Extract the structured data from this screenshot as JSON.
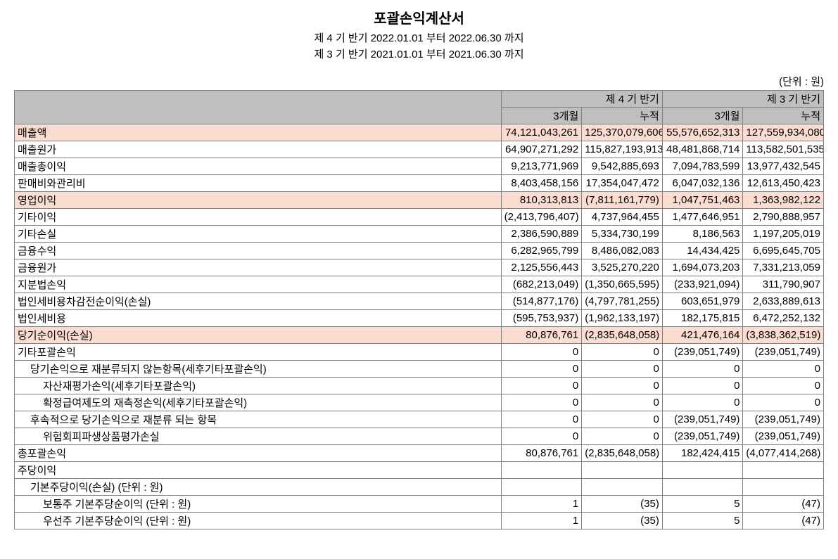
{
  "title": "포괄손익계산서",
  "subtitle1": "제 4 기 반기 2022.01.01 부터 2022.06.30 까지",
  "subtitle2": "제 3 기 반기 2021.01.01 부터 2021.06.30 까지",
  "unit": "(단위 : 원)",
  "headers": {
    "period4": "제 4 기 반기",
    "period3": "제 3 기 반기",
    "sub_3month": "3개월",
    "sub_cum": "누적"
  },
  "rows": [
    {
      "label": "매출액",
      "highlight": true,
      "indent": 0,
      "v1": "74,121,043,261",
      "v2": "125,370,079,606",
      "v3": "55,576,652,313",
      "v4": "127,559,934,080"
    },
    {
      "label": "매출원가",
      "highlight": false,
      "indent": 0,
      "v1": "64,907,271,292",
      "v2": "115,827,193,913",
      "v3": "48,481,868,714",
      "v4": "113,582,501,535"
    },
    {
      "label": "매출총이익",
      "highlight": false,
      "indent": 0,
      "v1": "9,213,771,969",
      "v2": "9,542,885,693",
      "v3": "7,094,783,599",
      "v4": "13,977,432,545"
    },
    {
      "label": "판매비와관리비",
      "highlight": false,
      "indent": 0,
      "v1": "8,403,458,156",
      "v2": "17,354,047,472",
      "v3": "6,047,032,136",
      "v4": "12,613,450,423"
    },
    {
      "label": "영업이익",
      "highlight": true,
      "indent": 0,
      "v1": "810,313,813",
      "v2": "(7,811,161,779)",
      "v3": "1,047,751,463",
      "v4": "1,363,982,122"
    },
    {
      "label": "기타이익",
      "highlight": false,
      "indent": 0,
      "v1": "(2,413,796,407)",
      "v2": "4,737,964,455",
      "v3": "1,477,646,951",
      "v4": "2,790,888,957"
    },
    {
      "label": "기타손실",
      "highlight": false,
      "indent": 0,
      "v1": "2,386,590,889",
      "v2": "5,334,730,199",
      "v3": "8,186,563",
      "v4": "1,197,205,019"
    },
    {
      "label": "금융수익",
      "highlight": false,
      "indent": 0,
      "v1": "6,282,965,799",
      "v2": "8,486,082,083",
      "v3": "14,434,425",
      "v4": "6,695,645,705"
    },
    {
      "label": "금융원가",
      "highlight": false,
      "indent": 0,
      "v1": "2,125,556,443",
      "v2": "3,525,270,220",
      "v3": "1,694,073,203",
      "v4": "7,331,213,059"
    },
    {
      "label": "지분법손익",
      "highlight": false,
      "indent": 0,
      "v1": "(682,213,049)",
      "v2": "(1,350,665,595)",
      "v3": "(233,921,094)",
      "v4": "311,790,907"
    },
    {
      "label": "법인세비용차감전순이익(손실)",
      "highlight": false,
      "indent": 0,
      "v1": "(514,877,176)",
      "v2": "(4,797,781,255)",
      "v3": "603,651,979",
      "v4": "2,633,889,613"
    },
    {
      "label": "법인세비용",
      "highlight": false,
      "indent": 0,
      "v1": "(595,753,937)",
      "v2": "(1,962,133,197)",
      "v3": "182,175,815",
      "v4": "6,472,252,132"
    },
    {
      "label": "당기순이익(손실)",
      "highlight": true,
      "indent": 0,
      "v1": "80,876,761",
      "v2": "(2,835,648,058)",
      "v3": "421,476,164",
      "v4": "(3,838,362,519)"
    },
    {
      "label": "기타포괄손익",
      "highlight": false,
      "indent": 0,
      "v1": "0",
      "v2": "0",
      "v3": "(239,051,749)",
      "v4": "(239,051,749)"
    },
    {
      "label": "당기손익으로 재분류되지 않는항목(세후기타포괄손익)",
      "highlight": false,
      "indent": 1,
      "v1": "0",
      "v2": "0",
      "v3": "0",
      "v4": "0"
    },
    {
      "label": "자산재평가손익(세후기타포괄손익)",
      "highlight": false,
      "indent": 2,
      "v1": "0",
      "v2": "0",
      "v3": "0",
      "v4": "0"
    },
    {
      "label": "확정급여제도의 재측정손익(세후기타포괄손익)",
      "highlight": false,
      "indent": 2,
      "v1": "0",
      "v2": "0",
      "v3": "0",
      "v4": "0"
    },
    {
      "label": "후속적으로 당기손익으로 재분류 되는 항목",
      "highlight": false,
      "indent": 1,
      "v1": "0",
      "v2": "0",
      "v3": "(239,051,749)",
      "v4": "(239,051,749)"
    },
    {
      "label": "위험회피파생상품평가손실",
      "highlight": false,
      "indent": 2,
      "v1": "0",
      "v2": "0",
      "v3": "(239,051,749)",
      "v4": "(239,051,749)"
    },
    {
      "label": "총포괄손익",
      "highlight": false,
      "indent": 0,
      "v1": "80,876,761",
      "v2": "(2,835,648,058)",
      "v3": "182,424,415",
      "v4": "(4,077,414,268)"
    },
    {
      "label": "주당이익",
      "highlight": false,
      "indent": 0,
      "v1": "",
      "v2": "",
      "v3": "",
      "v4": ""
    },
    {
      "label": "기본주당이익(손실) (단위 : 원)",
      "highlight": false,
      "indent": 1,
      "v1": "",
      "v2": "",
      "v3": "",
      "v4": ""
    },
    {
      "label": "보통주 기본주당순이익 (단위 : 원)",
      "highlight": false,
      "indent": 2,
      "v1": "1",
      "v2": "(35)",
      "v3": "5",
      "v4": "(47)"
    },
    {
      "label": "우선주 기본주당순이익 (단위 : 원)",
      "highlight": false,
      "indent": 2,
      "v1": "1",
      "v2": "(35)",
      "v3": "5",
      "v4": "(47)"
    }
  ],
  "colors": {
    "header_bg": "#bfbfbf",
    "highlight_bg": "#fadcd1",
    "border": "#808080",
    "text": "#000000",
    "background": "#ffffff"
  }
}
